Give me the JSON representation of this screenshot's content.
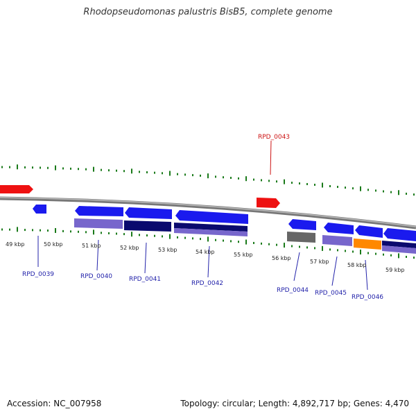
{
  "title": "Rhodopseudomonas palustris BisB5, complete genome",
  "footer": {
    "accession": "Accession: NC_007958",
    "summary": "Topology: circular; Length: 4,892,717 bp; Genes: 4,470"
  },
  "colors": {
    "backbone": "#888888",
    "tick": "#1a7a1a",
    "red": "#ee1111",
    "blue": "#1a1aee",
    "navy": "#0a0a6e",
    "lavender": "#7766cc",
    "gray": "#666666",
    "orange": "#ff8800",
    "label_blue": "#2222aa",
    "label_red": "#cc1111"
  },
  "scale_labels": [
    "49 kbp",
    "50 kbp",
    "51 kbp",
    "52 kbp",
    "53 kbp",
    "54 kbp",
    "55 kbp",
    "56 kbp",
    "57 kbp",
    "58 kbp",
    "59 kbp"
  ],
  "gene_labels": [
    {
      "text": "RPD_0043",
      "color": "red"
    },
    {
      "text": "RPD_0039",
      "color": "blue"
    },
    {
      "text": "RPD_0040",
      "color": "blue"
    },
    {
      "text": "RPD_0041",
      "color": "blue"
    },
    {
      "text": "RPD_0042",
      "color": "blue"
    },
    {
      "text": "RPD_0044",
      "color": "blue"
    },
    {
      "text": "RPD_0045",
      "color": "blue"
    },
    {
      "text": "RPD_0046",
      "color": "blue"
    }
  ]
}
